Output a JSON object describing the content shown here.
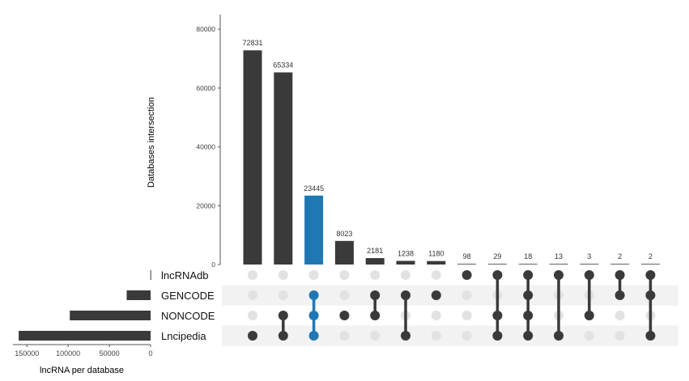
{
  "chart_data": {
    "type": "bar",
    "title": "",
    "ylabel": "Databases intersection",
    "xlabel": "lncRNA per database",
    "ylim": [
      0,
      85000
    ],
    "y_ticks": [
      0,
      20000,
      40000,
      60000,
      80000
    ],
    "set_size_ticks": [
      150000,
      100000,
      50000,
      0
    ],
    "set_size_xlim": [
      165000,
      0
    ],
    "grid": false,
    "colors": {
      "bar": "#3a3a3a",
      "highlight": "#1f77b4",
      "dot_off": "#e2e2e2",
      "stripe": "#f2f2f2"
    },
    "sets": [
      {
        "name": "lncRNAdb",
        "size": 300
      },
      {
        "name": "GENCODE",
        "size": 29000
      },
      {
        "name": "NONCODE",
        "size": 98000
      },
      {
        "name": "Lncipedia",
        "size": 160000
      }
    ],
    "intersections": [
      {
        "value": 72831,
        "sets": [
          3
        ],
        "highlight": false
      },
      {
        "value": 65334,
        "sets": [
          2,
          3
        ],
        "highlight": false
      },
      {
        "value": 23445,
        "sets": [
          1,
          2,
          3
        ],
        "highlight": true
      },
      {
        "value": 8023,
        "sets": [
          2
        ],
        "highlight": false
      },
      {
        "value": 2181,
        "sets": [
          1,
          2
        ],
        "highlight": false
      },
      {
        "value": 1238,
        "sets": [
          1,
          3
        ],
        "highlight": false
      },
      {
        "value": 1180,
        "sets": [
          1
        ],
        "highlight": false
      },
      {
        "value": 98,
        "sets": [
          0
        ],
        "highlight": false
      },
      {
        "value": 29,
        "sets": [
          0,
          2,
          3
        ],
        "highlight": false
      },
      {
        "value": 18,
        "sets": [
          0,
          1,
          2,
          3
        ],
        "highlight": false
      },
      {
        "value": 13,
        "sets": [
          0,
          3
        ],
        "highlight": false
      },
      {
        "value": 3,
        "sets": [
          0,
          2
        ],
        "highlight": false
      },
      {
        "value": 2,
        "sets": [
          0,
          1
        ],
        "highlight": false
      },
      {
        "value": 2,
        "sets": [
          0,
          1,
          3
        ],
        "highlight": false
      }
    ]
  }
}
